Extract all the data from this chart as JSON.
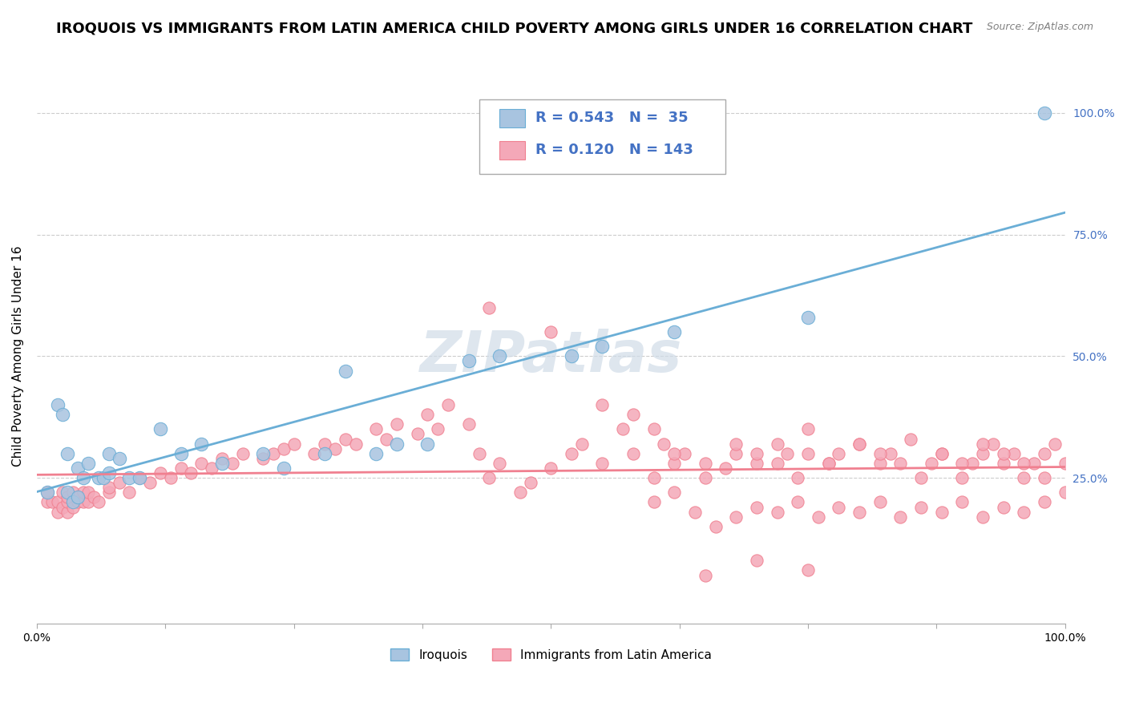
{
  "title": "IROQUOIS VS IMMIGRANTS FROM LATIN AMERICA CHILD POVERTY AMONG GIRLS UNDER 16 CORRELATION CHART",
  "source": "Source: ZipAtlas.com",
  "ylabel": "Child Poverty Among Girls Under 16",
  "xlabel": "",
  "xlim": [
    0,
    1
  ],
  "ylim": [
    -0.05,
    1.05
  ],
  "ytick_positions": [
    0.25,
    0.5,
    0.75,
    1.0
  ],
  "ytick_labels": [
    "25.0%",
    "50.0%",
    "75.0%",
    "100.0%"
  ],
  "xtick_positions": [
    0.0,
    0.125,
    0.25,
    0.375,
    0.5,
    0.625,
    0.75,
    0.875,
    1.0
  ],
  "xtick_labels": [
    "0.0%",
    "",
    "",
    "",
    "",
    "",
    "",
    "",
    "100.0%"
  ],
  "iroquois_color": "#a8c4e0",
  "immigrants_color": "#f4a8b8",
  "iroquois_line_color": "#6aaed6",
  "immigrants_line_color": "#f08090",
  "legend_box_color_1": "#a8c4e0",
  "legend_box_color_2": "#f4a8b8",
  "R1": 0.543,
  "N1": 35,
  "R2": 0.12,
  "N2": 143,
  "iroquois_x": [
    0.01,
    0.02,
    0.025,
    0.03,
    0.03,
    0.035,
    0.04,
    0.04,
    0.045,
    0.05,
    0.06,
    0.065,
    0.07,
    0.07,
    0.08,
    0.09,
    0.1,
    0.12,
    0.14,
    0.16,
    0.18,
    0.22,
    0.24,
    0.28,
    0.3,
    0.33,
    0.35,
    0.38,
    0.42,
    0.45,
    0.52,
    0.55,
    0.62,
    0.75,
    0.98
  ],
  "iroquois_y": [
    0.22,
    0.4,
    0.38,
    0.3,
    0.22,
    0.2,
    0.27,
    0.21,
    0.25,
    0.28,
    0.25,
    0.25,
    0.3,
    0.26,
    0.29,
    0.25,
    0.25,
    0.35,
    0.3,
    0.32,
    0.28,
    0.3,
    0.27,
    0.3,
    0.47,
    0.3,
    0.32,
    0.32,
    0.49,
    0.5,
    0.5,
    0.52,
    0.55,
    0.58,
    1.0
  ],
  "immigrants_x": [
    0.01,
    0.01,
    0.015,
    0.02,
    0.02,
    0.025,
    0.025,
    0.03,
    0.03,
    0.03,
    0.035,
    0.035,
    0.04,
    0.04,
    0.045,
    0.045,
    0.05,
    0.05,
    0.055,
    0.06,
    0.07,
    0.07,
    0.08,
    0.09,
    0.1,
    0.11,
    0.12,
    0.13,
    0.14,
    0.15,
    0.16,
    0.17,
    0.18,
    0.19,
    0.2,
    0.22,
    0.23,
    0.24,
    0.25,
    0.27,
    0.28,
    0.29,
    0.3,
    0.31,
    0.33,
    0.34,
    0.35,
    0.37,
    0.38,
    0.39,
    0.4,
    0.42,
    0.43,
    0.44,
    0.45,
    0.47,
    0.48,
    0.5,
    0.52,
    0.53,
    0.55,
    0.57,
    0.58,
    0.6,
    0.61,
    0.62,
    0.63,
    0.65,
    0.67,
    0.68,
    0.7,
    0.72,
    0.73,
    0.75,
    0.77,
    0.78,
    0.8,
    0.82,
    0.83,
    0.85,
    0.87,
    0.88,
    0.9,
    0.91,
    0.92,
    0.93,
    0.94,
    0.95,
    0.96,
    0.97,
    0.98,
    0.99,
    1.0,
    0.44,
    0.5,
    0.55,
    0.58,
    0.6,
    0.62,
    0.65,
    0.68,
    0.7,
    0.72,
    0.74,
    0.75,
    0.77,
    0.8,
    0.82,
    0.84,
    0.86,
    0.88,
    0.9,
    0.92,
    0.94,
    0.96,
    0.98,
    0.6,
    0.62,
    0.64,
    0.66,
    0.68,
    0.7,
    0.72,
    0.74,
    0.76,
    0.78,
    0.8,
    0.82,
    0.84,
    0.86,
    0.88,
    0.9,
    0.92,
    0.94,
    0.96,
    0.98,
    1.0,
    0.65,
    0.7,
    0.75
  ],
  "immigrants_y": [
    0.2,
    0.22,
    0.2,
    0.18,
    0.2,
    0.19,
    0.22,
    0.18,
    0.2,
    0.21,
    0.19,
    0.22,
    0.2,
    0.21,
    0.2,
    0.22,
    0.2,
    0.22,
    0.21,
    0.2,
    0.22,
    0.23,
    0.24,
    0.22,
    0.25,
    0.24,
    0.26,
    0.25,
    0.27,
    0.26,
    0.28,
    0.27,
    0.29,
    0.28,
    0.3,
    0.29,
    0.3,
    0.31,
    0.32,
    0.3,
    0.32,
    0.31,
    0.33,
    0.32,
    0.35,
    0.33,
    0.36,
    0.34,
    0.38,
    0.35,
    0.4,
    0.36,
    0.3,
    0.25,
    0.28,
    0.22,
    0.24,
    0.27,
    0.3,
    0.32,
    0.28,
    0.35,
    0.3,
    0.25,
    0.32,
    0.28,
    0.3,
    0.25,
    0.27,
    0.3,
    0.28,
    0.32,
    0.3,
    0.35,
    0.28,
    0.3,
    0.32,
    0.28,
    0.3,
    0.33,
    0.28,
    0.3,
    0.25,
    0.28,
    0.3,
    0.32,
    0.28,
    0.3,
    0.25,
    0.28,
    0.3,
    0.32,
    0.28,
    0.6,
    0.55,
    0.4,
    0.38,
    0.35,
    0.3,
    0.28,
    0.32,
    0.3,
    0.28,
    0.25,
    0.3,
    0.28,
    0.32,
    0.3,
    0.28,
    0.25,
    0.3,
    0.28,
    0.32,
    0.3,
    0.28,
    0.25,
    0.2,
    0.22,
    0.18,
    0.15,
    0.17,
    0.19,
    0.18,
    0.2,
    0.17,
    0.19,
    0.18,
    0.2,
    0.17,
    0.19,
    0.18,
    0.2,
    0.17,
    0.19,
    0.18,
    0.2,
    0.22,
    0.05,
    0.08,
    0.06
  ],
  "background_color": "#ffffff",
  "grid_color": "#cccccc",
  "watermark_text": "ZIPatlas",
  "watermark_color": "#d0dce8",
  "title_fontsize": 13,
  "axis_label_fontsize": 11,
  "tick_fontsize": 10,
  "legend_fontsize": 13,
  "right_ytick_color": "#4472c4"
}
